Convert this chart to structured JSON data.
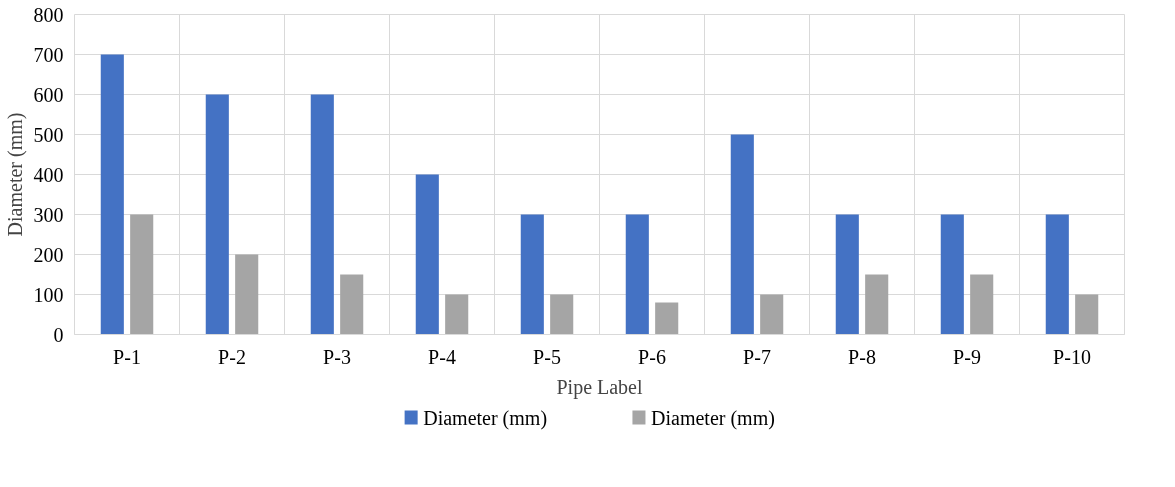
{
  "chart_data": {
    "type": "bar",
    "xlabel": "Pipe Label",
    "ylabel": "Diameter (mm)",
    "categories": [
      "P-1",
      "P-2",
      "P-3",
      "P-4",
      "P-5",
      "P-6",
      "P-7",
      "P-8",
      "P-9",
      "P-10"
    ],
    "series": [
      {
        "name": "Diameter (mm)",
        "color": "#4472c4",
        "values": [
          700,
          600,
          600,
          400,
          300,
          300,
          500,
          300,
          300,
          300
        ]
      },
      {
        "name": "Diameter (mm)",
        "color": "#a5a5a5",
        "values": [
          300,
          200,
          150,
          100,
          100,
          80,
          100,
          150,
          150,
          100
        ]
      }
    ],
    "ylim": [
      0,
      800
    ],
    "yticks": [
      0,
      100,
      200,
      300,
      400,
      500,
      600,
      700,
      800
    ],
    "grid": true,
    "legend": "bottom"
  }
}
